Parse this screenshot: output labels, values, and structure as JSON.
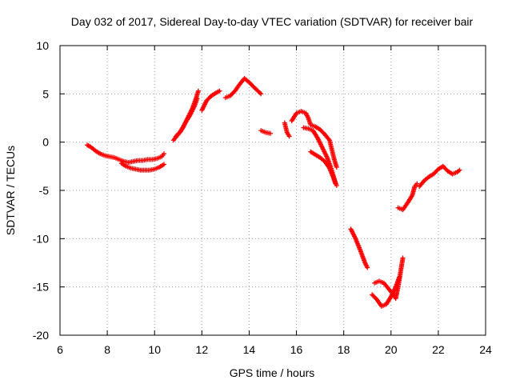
{
  "chart_data": {
    "type": "scatter",
    "title": "Day 032 of 2017, Sidereal Day-to-day VTEC variation (SDTVAR) for receiver bair",
    "xlabel": "GPS time / hours",
    "ylabel": "SDTVAR / TECUs",
    "xlim": [
      6,
      24
    ],
    "ylim": [
      -20,
      10
    ],
    "xticks": [
      6,
      8,
      10,
      12,
      14,
      16,
      18,
      20,
      22,
      24
    ],
    "yticks": [
      -20,
      -15,
      -10,
      -5,
      0,
      5,
      10
    ],
    "grid": true,
    "marker": "plus",
    "marker_color": "#ff0000",
    "series": [
      {
        "segments": [
          [
            [
              7.15,
              -0.3
            ],
            [
              7.3,
              -0.5
            ],
            [
              7.5,
              -0.9
            ],
            [
              7.7,
              -1.2
            ],
            [
              7.9,
              -1.4
            ],
            [
              8.1,
              -1.5
            ],
            [
              8.3,
              -1.6
            ],
            [
              8.5,
              -1.8
            ],
            [
              8.7,
              -2.0
            ],
            [
              8.9,
              -2.1
            ],
            [
              9.1,
              -2.0
            ],
            [
              9.3,
              -1.9
            ],
            [
              9.5,
              -1.9
            ],
            [
              9.7,
              -1.8
            ],
            [
              9.9,
              -1.8
            ],
            [
              10.1,
              -1.7
            ],
            [
              10.3,
              -1.5
            ],
            [
              10.4,
              -1.2
            ]
          ],
          [
            [
              8.6,
              -2.2
            ],
            [
              8.8,
              -2.5
            ],
            [
              9.0,
              -2.7
            ],
            [
              9.2,
              -2.8
            ],
            [
              9.4,
              -2.9
            ],
            [
              9.6,
              -2.9
            ],
            [
              9.8,
              -2.9
            ],
            [
              10.0,
              -2.8
            ],
            [
              10.2,
              -2.6
            ],
            [
              10.4,
              -2.3
            ]
          ],
          [
            [
              10.8,
              0.2
            ],
            [
              11.0,
              0.8
            ],
            [
              11.2,
              1.5
            ],
            [
              11.4,
              2.5
            ],
            [
              11.6,
              3.5
            ],
            [
              11.75,
              4.5
            ],
            [
              11.85,
              5.3
            ]
          ],
          [
            [
              10.9,
              0.6
            ],
            [
              11.1,
              1.1
            ],
            [
              11.3,
              2.0
            ],
            [
              11.5,
              2.8
            ],
            [
              11.7,
              3.8
            ],
            [
              11.8,
              4.5
            ]
          ],
          [
            [
              12.0,
              3.3
            ],
            [
              12.2,
              4.3
            ],
            [
              12.4,
              4.8
            ],
            [
              12.6,
              5.1
            ],
            [
              12.75,
              5.3
            ]
          ],
          [
            [
              13.0,
              4.6
            ],
            [
              13.2,
              4.8
            ],
            [
              13.4,
              5.3
            ],
            [
              13.6,
              6.0
            ],
            [
              13.8,
              6.6
            ],
            [
              14.0,
              6.2
            ],
            [
              14.2,
              5.7
            ],
            [
              14.5,
              5.0
            ]
          ],
          [
            [
              14.5,
              1.2
            ],
            [
              14.7,
              1.0
            ],
            [
              14.9,
              0.9
            ]
          ],
          [
            [
              15.5,
              2.0
            ],
            [
              15.6,
              1.0
            ],
            [
              15.7,
              0.6
            ]
          ],
          [
            [
              15.8,
              2.2
            ],
            [
              16.0,
              3.0
            ],
            [
              16.2,
              3.2
            ],
            [
              16.4,
              3.0
            ],
            [
              16.5,
              2.5
            ],
            [
              16.6,
              1.8
            ],
            [
              16.8,
              1.6
            ],
            [
              17.0,
              1.3
            ],
            [
              17.2,
              0.8
            ],
            [
              17.4,
              0.2
            ],
            [
              17.5,
              -0.8
            ],
            [
              17.6,
              -1.8
            ],
            [
              17.7,
              -2.6
            ]
          ],
          [
            [
              16.3,
              1.5
            ],
            [
              16.5,
              1.4
            ],
            [
              16.7,
              1.2
            ],
            [
              16.9,
              0.4
            ],
            [
              17.1,
              -0.6
            ],
            [
              17.3,
              -1.6
            ],
            [
              17.45,
              -2.6
            ],
            [
              17.55,
              -3.4
            ],
            [
              17.65,
              -4.2
            ],
            [
              17.7,
              -4.5
            ]
          ],
          [
            [
              16.6,
              -1.0
            ],
            [
              16.8,
              -1.3
            ],
            [
              17.0,
              -1.6
            ],
            [
              17.2,
              -2.0
            ],
            [
              17.4,
              -2.7
            ],
            [
              17.55,
              -3.6
            ],
            [
              17.65,
              -4.3
            ]
          ],
          [
            [
              18.3,
              -9.0
            ],
            [
              18.5,
              -10.0
            ],
            [
              18.7,
              -11.2
            ],
            [
              18.9,
              -12.5
            ],
            [
              19.0,
              -13.0
            ]
          ],
          [
            [
              19.3,
              -14.6
            ],
            [
              19.5,
              -14.4
            ],
            [
              19.7,
              -14.6
            ],
            [
              19.9,
              -15.2
            ],
            [
              20.1,
              -15.8
            ],
            [
              20.2,
              -16.2
            ],
            [
              20.3,
              -15.0
            ],
            [
              20.4,
              -13.5
            ],
            [
              20.5,
              -12.0
            ]
          ],
          [
            [
              19.2,
              -15.8
            ],
            [
              19.4,
              -16.3
            ],
            [
              19.6,
              -17.0
            ],
            [
              19.8,
              -16.8
            ],
            [
              20.0,
              -16.0
            ],
            [
              20.2,
              -15.0
            ],
            [
              20.35,
              -14.0
            ]
          ],
          [
            [
              20.3,
              -6.8
            ],
            [
              20.5,
              -7.0
            ],
            [
              20.7,
              -6.3
            ],
            [
              20.9,
              -5.5
            ],
            [
              21.0,
              -4.6
            ],
            [
              21.1,
              -4.3
            ]
          ],
          [
            [
              21.2,
              -4.6
            ],
            [
              21.4,
              -4.0
            ],
            [
              21.6,
              -3.6
            ],
            [
              21.8,
              -3.3
            ],
            [
              22.0,
              -2.8
            ],
            [
              22.2,
              -2.5
            ],
            [
              22.4,
              -3.0
            ],
            [
              22.6,
              -3.3
            ],
            [
              22.8,
              -3.1
            ],
            [
              22.9,
              -2.9
            ]
          ]
        ]
      }
    ]
  }
}
